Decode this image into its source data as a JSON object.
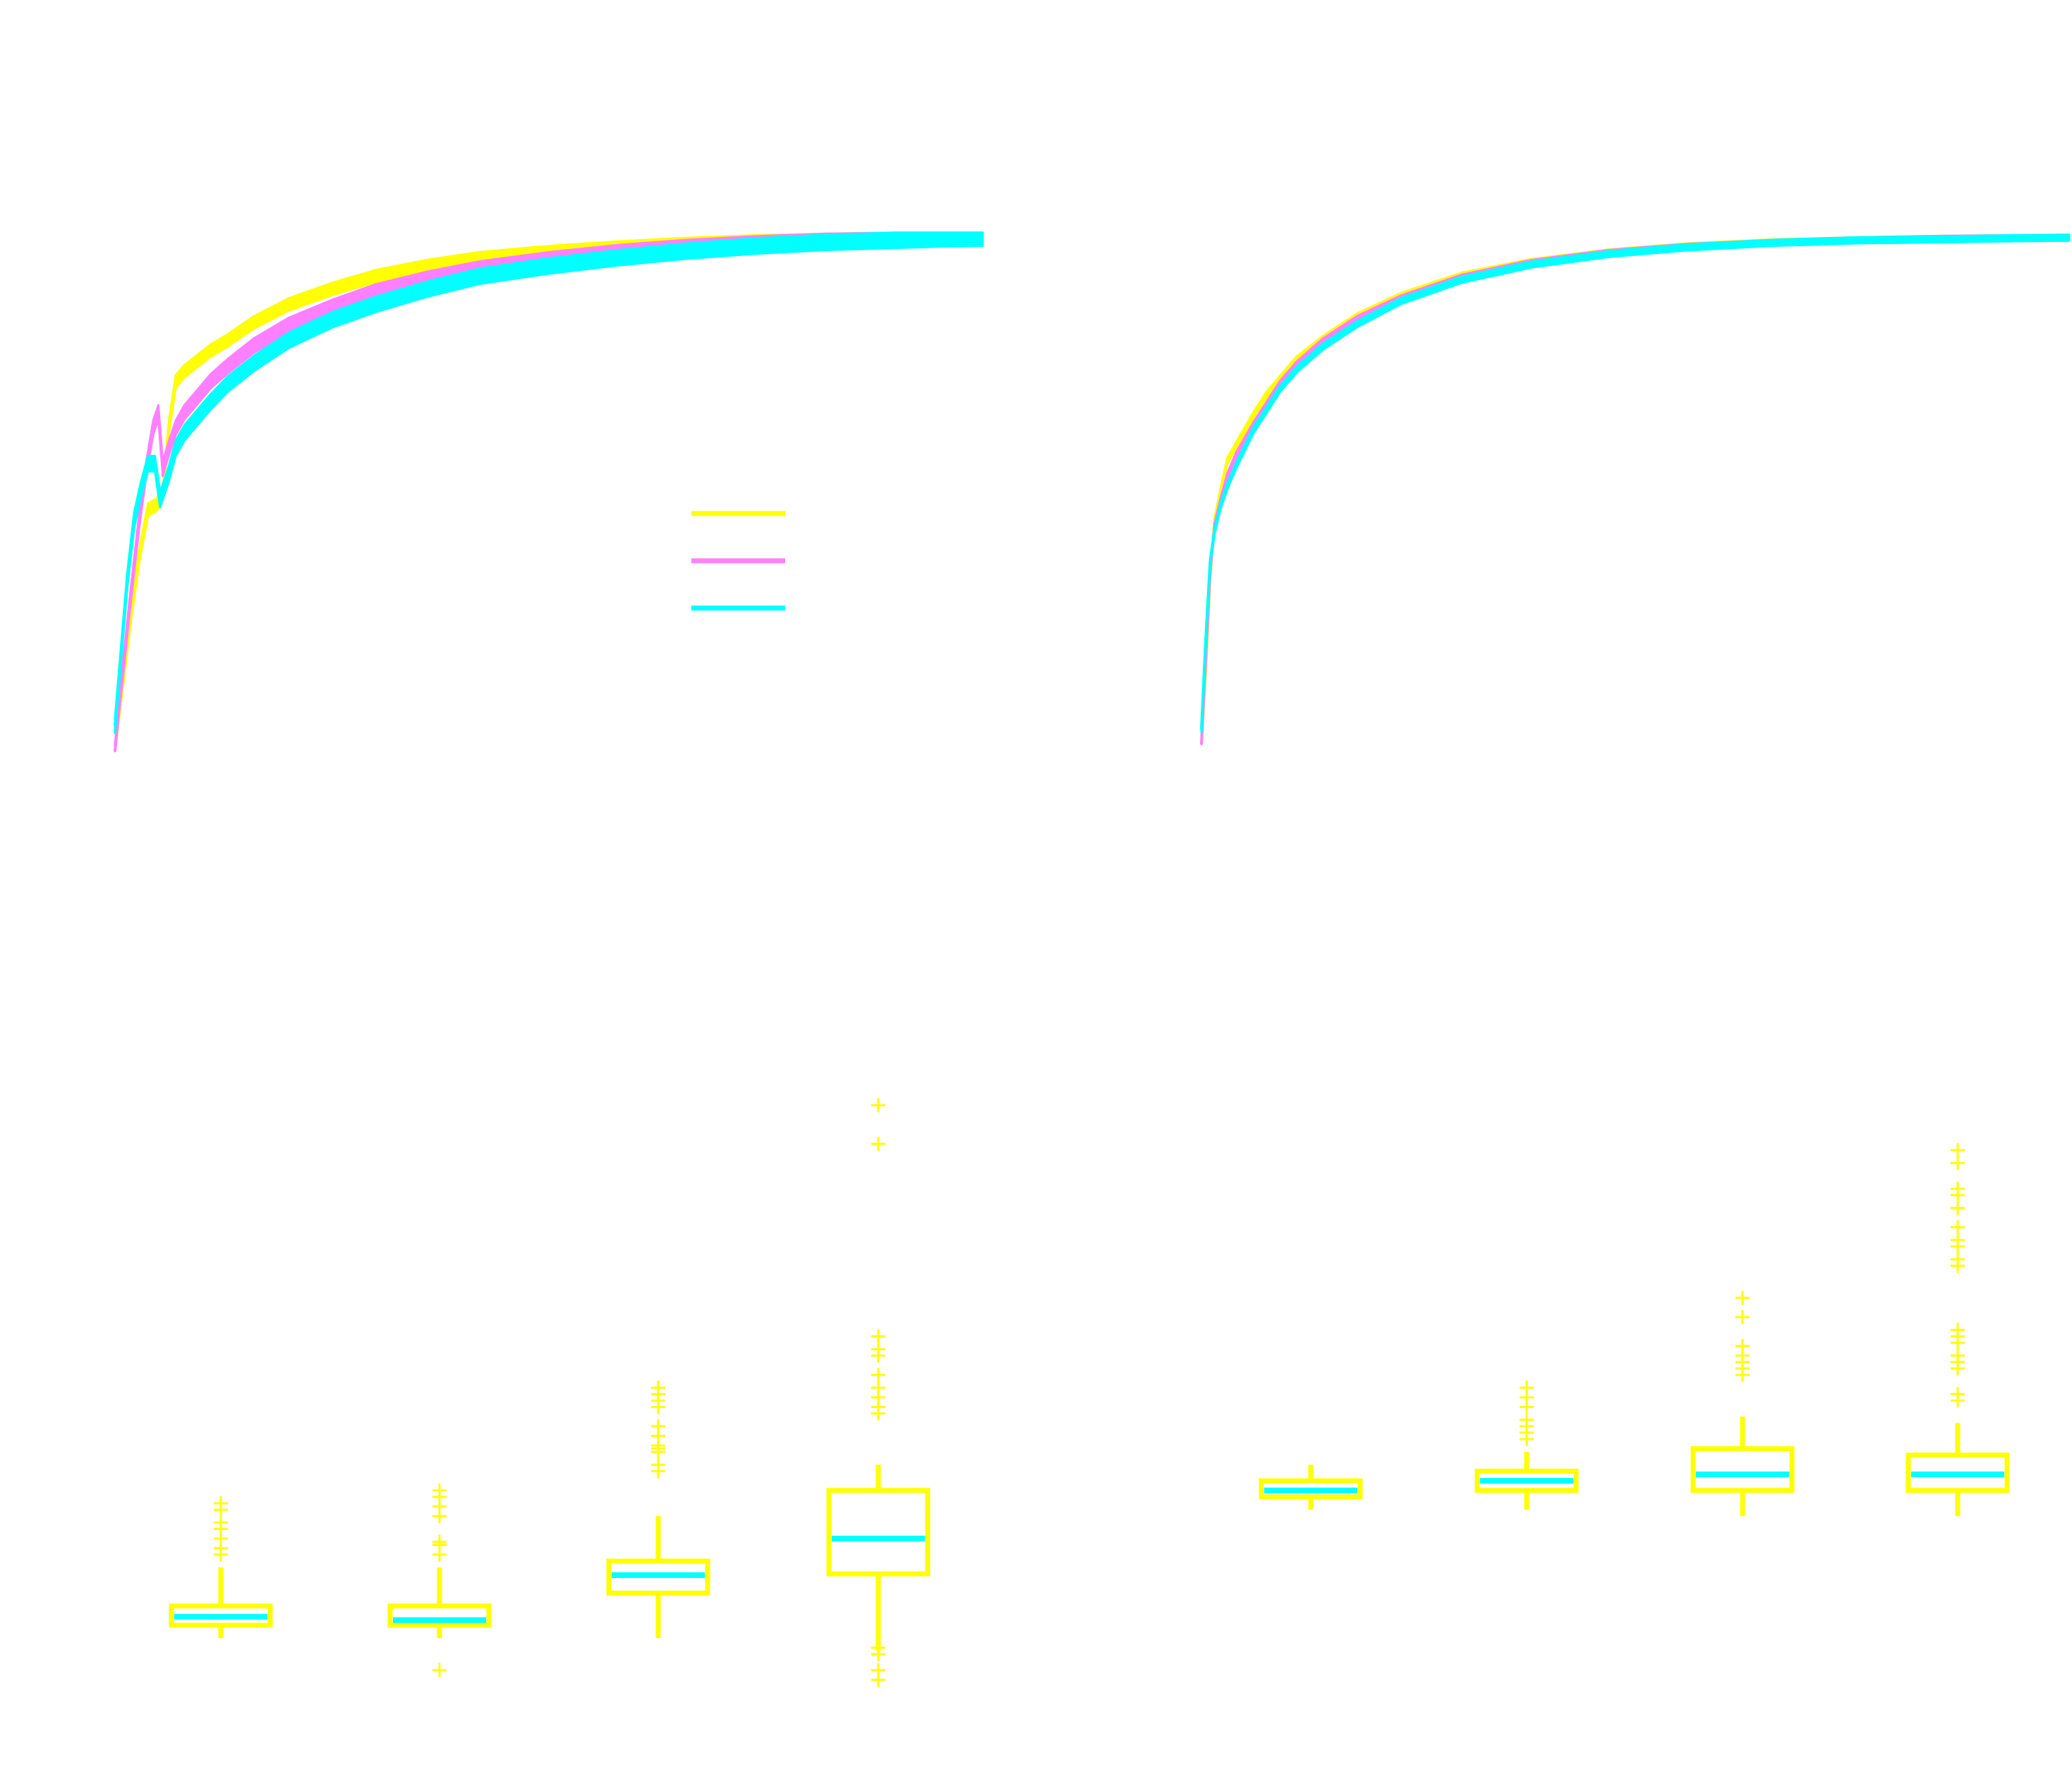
{
  "colors": {
    "yellow": "#ffff00",
    "magenta": "#ff80ff",
    "cyan": "#00ffff",
    "background": "#ffffff"
  },
  "chart_data": [
    {
      "type": "line",
      "panel": "top-left",
      "x_domain": [
        0,
        1000
      ],
      "y_domain": [
        0,
        1
      ],
      "legend_placement": "center",
      "series": [
        {
          "color": "#ffff00",
          "band": 0.012,
          "x": [
            0,
            8,
            18,
            28,
            38,
            48,
            55,
            62,
            70,
            80,
            95,
            110,
            130,
            160,
            200,
            250,
            300,
            360,
            420,
            500,
            580,
            660,
            740,
            820,
            900,
            960,
            1000
          ],
          "y": [
            0.0,
            0.12,
            0.26,
            0.38,
            0.47,
            0.48,
            0.5,
            0.63,
            0.72,
            0.74,
            0.76,
            0.78,
            0.8,
            0.835,
            0.87,
            0.9,
            0.925,
            0.945,
            0.96,
            0.972,
            0.981,
            0.988,
            0.993,
            0.996,
            0.998,
            0.999,
            1.0
          ]
        },
        {
          "color": "#ff80ff",
          "band": 0.014,
          "x": [
            0,
            8,
            18,
            28,
            36,
            44,
            50,
            55,
            62,
            70,
            80,
            95,
            110,
            130,
            160,
            200,
            250,
            300,
            360,
            420,
            500,
            580,
            660,
            740,
            820,
            900,
            960,
            1000
          ],
          "y": [
            0.0,
            0.14,
            0.3,
            0.45,
            0.55,
            0.63,
            0.66,
            0.55,
            0.59,
            0.63,
            0.66,
            0.69,
            0.72,
            0.75,
            0.79,
            0.83,
            0.865,
            0.895,
            0.92,
            0.94,
            0.958,
            0.972,
            0.982,
            0.989,
            0.994,
            0.997,
            0.999,
            1.0
          ]
        },
        {
          "color": "#00ffff",
          "band": 0.015,
          "x": [
            0,
            6,
            14,
            22,
            30,
            38,
            46,
            52,
            62,
            70,
            80,
            95,
            110,
            130,
            160,
            200,
            250,
            300,
            360,
            420,
            500,
            580,
            660,
            740,
            820,
            900,
            960,
            1000
          ],
          "y": [
            0.05,
            0.17,
            0.33,
            0.45,
            0.51,
            0.56,
            0.56,
            0.49,
            0.54,
            0.59,
            0.62,
            0.65,
            0.68,
            0.715,
            0.755,
            0.8,
            0.84,
            0.87,
            0.9,
            0.925,
            0.945,
            0.961,
            0.974,
            0.984,
            0.991,
            0.995,
            0.998,
            0.999
          ]
        }
      ]
    },
    {
      "type": "line",
      "panel": "top-right",
      "x_domain": [
        0,
        1000
      ],
      "y_domain": [
        0,
        1
      ],
      "series": [
        {
          "color": "#ffff00",
          "band": 0.006,
          "x": [
            0,
            5,
            10,
            15,
            22,
            30,
            40,
            50,
            60,
            75,
            90,
            110,
            140,
            180,
            230,
            300,
            380,
            470,
            560,
            660,
            760,
            860,
            940,
            1000
          ],
          "y": [
            0.0,
            0.15,
            0.33,
            0.44,
            0.5,
            0.56,
            0.59,
            0.62,
            0.65,
            0.69,
            0.72,
            0.76,
            0.8,
            0.845,
            0.885,
            0.925,
            0.952,
            0.971,
            0.983,
            0.991,
            0.995,
            0.998,
            0.999,
            1.0
          ]
        },
        {
          "color": "#ff80ff",
          "band": 0.006,
          "x": [
            0,
            5,
            10,
            15,
            22,
            30,
            40,
            50,
            60,
            75,
            90,
            110,
            140,
            180,
            230,
            300,
            380,
            470,
            560,
            660,
            760,
            860,
            940,
            1000
          ],
          "y": [
            0.0,
            0.17,
            0.34,
            0.43,
            0.48,
            0.53,
            0.57,
            0.6,
            0.63,
            0.67,
            0.71,
            0.75,
            0.795,
            0.84,
            0.88,
            0.921,
            0.95,
            0.97,
            0.982,
            0.99,
            0.995,
            0.998,
            0.999,
            1.0
          ]
        },
        {
          "color": "#00ffff",
          "band": 0.006,
          "x": [
            0,
            5,
            10,
            15,
            22,
            30,
            40,
            50,
            60,
            75,
            90,
            110,
            140,
            180,
            230,
            300,
            380,
            470,
            560,
            660,
            760,
            860,
            940,
            1000
          ],
          "y": [
            0.03,
            0.21,
            0.36,
            0.42,
            0.47,
            0.51,
            0.55,
            0.585,
            0.62,
            0.66,
            0.7,
            0.74,
            0.785,
            0.83,
            0.875,
            0.917,
            0.947,
            0.968,
            0.981,
            0.99,
            0.995,
            0.997,
            0.999,
            1.0
          ]
        }
      ]
    },
    {
      "type": "box",
      "panel": "bottom-left",
      "y_domain": [
        0,
        1
      ],
      "box_color": "#ffff00",
      "median_color": "#00ffff",
      "boxes": [
        {
          "q1": 0.1,
          "median": 0.113,
          "q3": 0.13,
          "whisker_low": 0.08,
          "whisker_high": 0.19,
          "outliers": [
            0.21,
            0.22,
            0.235,
            0.25,
            0.26,
            0.28,
            0.29
          ]
        },
        {
          "q1": 0.1,
          "median": 0.108,
          "q3": 0.13,
          "whisker_low": 0.08,
          "whisker_high": 0.19,
          "outliers": [
            0.03,
            0.21,
            0.225,
            0.23,
            0.27,
            0.285,
            0.3,
            0.31
          ]
        },
        {
          "q1": 0.15,
          "median": 0.178,
          "q3": 0.2,
          "whisker_low": 0.08,
          "whisker_high": 0.27,
          "outliers": [
            0.34,
            0.35,
            0.37,
            0.375,
            0.38,
            0.395,
            0.41,
            0.44,
            0.45,
            0.46,
            0.47
          ]
        },
        {
          "q1": 0.18,
          "median": 0.235,
          "q3": 0.31,
          "whisker_low": 0.06,
          "whisker_high": 0.35,
          "outliers": [
            0.015,
            0.03,
            0.055,
            0.065,
            0.43,
            0.44,
            0.455,
            0.47,
            0.49,
            0.52,
            0.53,
            0.55,
            0.85,
            0.91
          ]
        }
      ]
    },
    {
      "type": "box",
      "panel": "bottom-right",
      "y_domain": [
        0,
        1
      ],
      "box_color": "#ffff00",
      "median_color": "#00ffff",
      "boxes": [
        {
          "q1": 0.3,
          "median": 0.31,
          "q3": 0.325,
          "whisker_low": 0.28,
          "whisker_high": 0.35,
          "outliers": []
        },
        {
          "q1": 0.31,
          "median": 0.325,
          "q3": 0.34,
          "whisker_low": 0.28,
          "whisker_high": 0.37,
          "outliers": [
            0.39,
            0.4,
            0.41,
            0.42,
            0.44,
            0.455,
            0.47
          ]
        },
        {
          "q1": 0.31,
          "median": 0.335,
          "q3": 0.375,
          "whisker_low": 0.27,
          "whisker_high": 0.425,
          "outliers": [
            0.49,
            0.5,
            0.51,
            0.52,
            0.535,
            0.58,
            0.61
          ]
        },
        {
          "q1": 0.31,
          "median": 0.335,
          "q3": 0.365,
          "whisker_low": 0.27,
          "whisker_high": 0.415,
          "outliers": [
            0.45,
            0.46,
            0.5,
            0.51,
            0.52,
            0.54,
            0.55,
            0.56,
            0.66,
            0.67,
            0.69,
            0.7,
            0.72,
            0.75,
            0.77,
            0.78,
            0.82,
            0.84
          ]
        }
      ]
    }
  ]
}
